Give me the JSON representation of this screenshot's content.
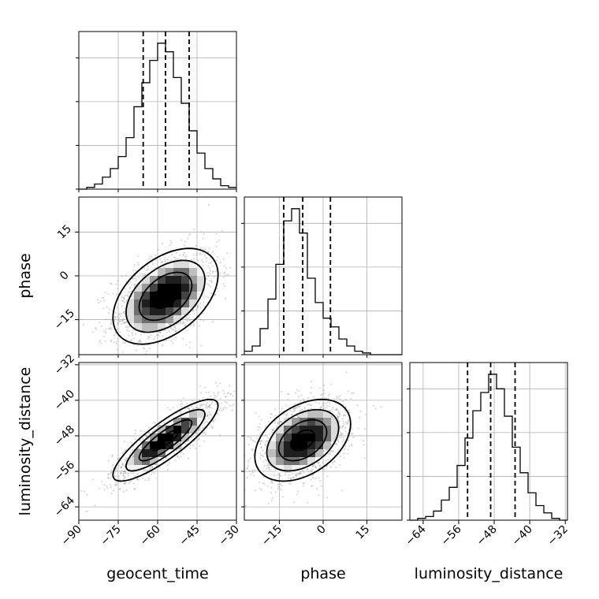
{
  "chart_data": {
    "type": "corner",
    "parameters": [
      "geocent_time",
      "phase",
      "luminosity_distance"
    ],
    "axes": {
      "geocent_time": {
        "label": "geocent_time",
        "range": [
          -90,
          -30
        ],
        "ticks": [
          -90,
          -75,
          -60,
          -45,
          -30
        ]
      },
      "phase": {
        "label": "phase",
        "range": [
          -27,
          27
        ],
        "ticks": [
          -15,
          0,
          15
        ]
      },
      "luminosity_distance": {
        "label": "luminosity_distance",
        "range": [
          -67,
          -31.5
        ],
        "ticks": [
          -64,
          -56,
          -48,
          -40,
          -32
        ]
      }
    },
    "histograms": [
      {
        "param": "geocent_time",
        "bin_start": -90,
        "bin_width": 3,
        "counts": [
          0,
          1,
          3,
          7,
          12,
          19,
          30,
          48,
          62,
          75,
          85,
          80,
          65,
          50,
          34,
          21,
          12,
          6,
          2,
          1
        ],
        "quantiles": [
          -65.5,
          -57.0,
          -48.0
        ]
      },
      {
        "param": "phase",
        "bin_start": -27,
        "bin_width": 2.7,
        "counts": [
          2,
          5,
          15,
          32,
          52,
          77,
          84,
          70,
          44,
          30,
          21,
          16,
          9,
          5,
          2,
          1,
          0,
          0,
          0,
          0
        ],
        "quantiles": [
          -13.5,
          -7.0,
          2.5
        ]
      },
      {
        "param": "luminosity_distance",
        "bin_start": -67,
        "bin_width": 1.775,
        "counts": [
          0,
          1,
          2,
          5,
          11,
          18,
          30,
          45,
          60,
          70,
          80,
          72,
          57,
          40,
          26,
          15,
          8,
          4,
          1,
          0
        ],
        "quantiles": [
          -54.0,
          -48.8,
          -43.3
        ]
      }
    ],
    "joint": [
      {
        "x": "geocent_time",
        "y": "phase",
        "mean": [
          -57,
          -7
        ],
        "sd": [
          10,
          8.2
        ],
        "corr": 0.45
      },
      {
        "x": "geocent_time",
        "y": "luminosity_distance",
        "mean": [
          -57,
          -49
        ],
        "sd": [
          10,
          4.6
        ],
        "corr": 0.85
      },
      {
        "x": "phase",
        "y": "luminosity_distance",
        "mean": [
          -7,
          -49
        ],
        "sd": [
          8.2,
          4.6
        ],
        "corr": 0.4
      }
    ],
    "grid": true
  }
}
